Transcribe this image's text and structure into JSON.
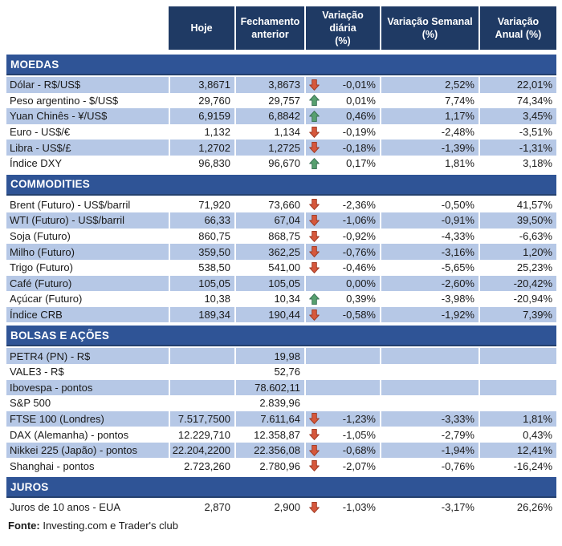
{
  "colors": {
    "header_bg": "#1F3A64",
    "section_bg": "#2F5496",
    "section_edge": "#24406E",
    "row_blue": "#B6C8E6",
    "page_bg": "#FFFFFF",
    "text": "#1A1A1A",
    "up_fill": "#57A06F",
    "up_stroke": "#3C7257",
    "down_fill": "#D6583C",
    "down_stroke": "#9E3A24"
  },
  "header": {
    "cells": [
      "",
      "Hoje",
      "Fechamento\nanterior",
      "Variação diária\n(%)",
      "Variação Semanal\n(%)",
      "Variação\nAnual (%)"
    ]
  },
  "footer": {
    "label": "Fonte:",
    "text": " Investing.com e Trader's club"
  },
  "chart_data": {
    "type": "table",
    "columns": [
      "",
      "Hoje",
      "Fechamento anterior",
      "Variação diária (%)",
      "Variação Semanal (%)",
      "Variação Anual (%)"
    ],
    "sections": [
      {
        "title": "MOEDAS",
        "rows": [
          {
            "label": "Dólar - R$/US$",
            "hoje": "3,8671",
            "fechamento_anterior": "3,8673",
            "trend": "down",
            "variacao_diaria": "-0,01%",
            "variacao_semanal": "2,52%",
            "variacao_anual": "22,01%"
          },
          {
            "label": "Peso argentino - $/US$",
            "hoje": "29,760",
            "fechamento_anterior": "29,757",
            "trend": "up",
            "variacao_diaria": "0,01%",
            "variacao_semanal": "7,74%",
            "variacao_anual": "74,34%"
          },
          {
            "label": "Yuan Chinês - ¥/US$",
            "hoje": "6,9159",
            "fechamento_anterior": "6,8842",
            "trend": "up",
            "variacao_diaria": "0,46%",
            "variacao_semanal": "1,17%",
            "variacao_anual": "3,45%"
          },
          {
            "label": "Euro - US$/€",
            "hoje": "1,132",
            "fechamento_anterior": "1,134",
            "trend": "down",
            "variacao_diaria": "-0,19%",
            "variacao_semanal": "-2,48%",
            "variacao_anual": "-3,51%"
          },
          {
            "label": "Libra - US$/£",
            "hoje": "1,2702",
            "fechamento_anterior": "1,2725",
            "trend": "down",
            "variacao_diaria": "-0,18%",
            "variacao_semanal": "-1,39%",
            "variacao_anual": "-1,31%"
          },
          {
            "label": "Índice DXY",
            "hoje": "96,830",
            "fechamento_anterior": "96,670",
            "trend": "up",
            "variacao_diaria": "0,17%",
            "variacao_semanal": "1,81%",
            "variacao_anual": "3,18%"
          }
        ]
      },
      {
        "title": "COMMODITIES",
        "rows": [
          {
            "label": "Brent (Futuro) - US$/barril",
            "hoje": "71,920",
            "fechamento_anterior": "73,660",
            "trend": "down",
            "variacao_diaria": "-2,36%",
            "variacao_semanal": "-0,50%",
            "variacao_anual": "41,57%"
          },
          {
            "label": "WTI (Futuro) - US$/barril",
            "hoje": "66,33",
            "fechamento_anterior": "67,04",
            "trend": "down",
            "variacao_diaria": "-1,06%",
            "variacao_semanal": "-0,91%",
            "variacao_anual": "39,50%"
          },
          {
            "label": "Soja (Futuro)",
            "hoje": "860,75",
            "fechamento_anterior": "868,75",
            "trend": "down",
            "variacao_diaria": "-0,92%",
            "variacao_semanal": "-4,33%",
            "variacao_anual": "-6,63%"
          },
          {
            "label": "Milho (Futuro)",
            "hoje": "359,50",
            "fechamento_anterior": "362,25",
            "trend": "down",
            "variacao_diaria": "-0,76%",
            "variacao_semanal": "-3,16%",
            "variacao_anual": "1,20%"
          },
          {
            "label": "Trigo (Futuro)",
            "hoje": "538,50",
            "fechamento_anterior": "541,00",
            "trend": "down",
            "variacao_diaria": "-0,46%",
            "variacao_semanal": "-5,65%",
            "variacao_anual": "25,23%"
          },
          {
            "label": "Café (Futuro)",
            "hoje": "105,05",
            "fechamento_anterior": "105,05",
            "trend": null,
            "variacao_diaria": "0,00%",
            "variacao_semanal": "-2,60%",
            "variacao_anual": "-20,42%"
          },
          {
            "label": "Açúcar (Futuro)",
            "hoje": "10,38",
            "fechamento_anterior": "10,34",
            "trend": "up",
            "variacao_diaria": "0,39%",
            "variacao_semanal": "-3,98%",
            "variacao_anual": "-20,94%"
          },
          {
            "label": "Índice CRB",
            "hoje": "189,34",
            "fechamento_anterior": "190,44",
            "trend": "down",
            "variacao_diaria": "-0,58%",
            "variacao_semanal": "-1,92%",
            "variacao_anual": "7,39%"
          }
        ]
      },
      {
        "title": "BOLSAS E AÇÕES",
        "rows": [
          {
            "label": "PETR4 (PN) - R$",
            "hoje": "",
            "fechamento_anterior": "19,98",
            "trend": null,
            "variacao_diaria": "",
            "variacao_semanal": "",
            "variacao_anual": ""
          },
          {
            "label": "VALE3 - R$",
            "hoje": "",
            "fechamento_anterior": "52,76",
            "trend": null,
            "variacao_diaria": "",
            "variacao_semanal": "",
            "variacao_anual": ""
          },
          {
            "label": "Ibovespa - pontos",
            "hoje": "",
            "fechamento_anterior": "78.602,11",
            "trend": null,
            "variacao_diaria": "",
            "variacao_semanal": "",
            "variacao_anual": ""
          },
          {
            "label": "S&P 500",
            "hoje": "",
            "fechamento_anterior": "2.839,96",
            "trend": null,
            "variacao_diaria": "",
            "variacao_semanal": "",
            "variacao_anual": ""
          },
          {
            "label": "FTSE 100 (Londres)",
            "hoje": "7.517,7500",
            "fechamento_anterior": "7.611,64",
            "trend": "down",
            "variacao_diaria": "-1,23%",
            "variacao_semanal": "-3,33%",
            "variacao_anual": "1,81%"
          },
          {
            "label": "DAX (Alemanha) - pontos",
            "hoje": "12.229,710",
            "fechamento_anterior": "12.358,87",
            "trend": "down",
            "variacao_diaria": "-1,05%",
            "variacao_semanal": "-2,79%",
            "variacao_anual": "0,43%"
          },
          {
            "label": "Nikkei 225 (Japão) - pontos",
            "hoje": "22.204,2200",
            "fechamento_anterior": "22.356,08",
            "trend": "down",
            "variacao_diaria": "-0,68%",
            "variacao_semanal": "-1,94%",
            "variacao_anual": "12,41%"
          },
          {
            "label": "Shanghai - pontos",
            "hoje": "2.723,260",
            "fechamento_anterior": "2.780,96",
            "trend": "down",
            "variacao_diaria": "-2,07%",
            "variacao_semanal": "-0,76%",
            "variacao_anual": "-16,24%"
          }
        ]
      },
      {
        "title": "JUROS",
        "rows": [
          {
            "label": "Juros de 10 anos - EUA",
            "hoje": "2,870",
            "fechamento_anterior": "2,900",
            "trend": "down",
            "variacao_diaria": "-1,03%",
            "variacao_semanal": "-3,17%",
            "variacao_anual": "26,26%"
          }
        ]
      }
    ]
  }
}
